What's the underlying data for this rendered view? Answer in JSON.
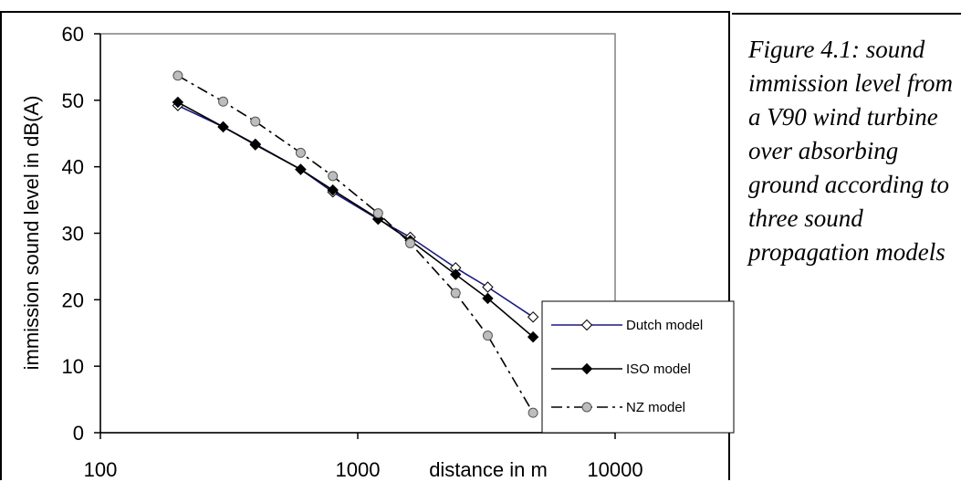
{
  "caption": "Figure 4.1: sound immission level from a V90 wind turbine over absorbing ground according to three sound propagation models",
  "chart_data": {
    "type": "line",
    "xscale": "log",
    "xlim": [
      100,
      10000
    ],
    "ylim": [
      0,
      60
    ],
    "xticks": [
      100,
      1000,
      10000
    ],
    "xtick_labels": [
      "100",
      "1000",
      "10000"
    ],
    "yticks": [
      0,
      10,
      20,
      30,
      40,
      50,
      60
    ],
    "ytick_labels": [
      "0",
      "10",
      "20",
      "30",
      "40",
      "50",
      "60"
    ],
    "xlabel": "distance in m",
    "ylabel": "immission sound level in dB(A)",
    "grid": false,
    "legend_position": "bottom-right",
    "x": [
      200,
      300,
      400,
      600,
      800,
      1200,
      1600,
      2400,
      3200,
      4800
    ],
    "series": [
      {
        "name": "Dutch model",
        "color": "#1a1a80",
        "line": "solid",
        "marker": "open-diamond",
        "values": [
          49.2,
          46.0,
          43.4,
          39.6,
          36.2,
          32.1,
          29.4,
          24.8,
          21.9,
          17.4
        ]
      },
      {
        "name": "ISO model",
        "color": "#000000",
        "line": "solid",
        "marker": "filled-diamond",
        "values": [
          49.7,
          46.0,
          43.3,
          39.6,
          36.5,
          32.2,
          28.9,
          23.8,
          20.2,
          14.4
        ]
      },
      {
        "name": "NZ model",
        "color": "#000000",
        "line": "dashdot",
        "marker": "grey-circle",
        "values": [
          53.7,
          49.8,
          46.8,
          42.1,
          38.6,
          33.0,
          28.5,
          21.0,
          14.6,
          3.0
        ]
      }
    ]
  }
}
